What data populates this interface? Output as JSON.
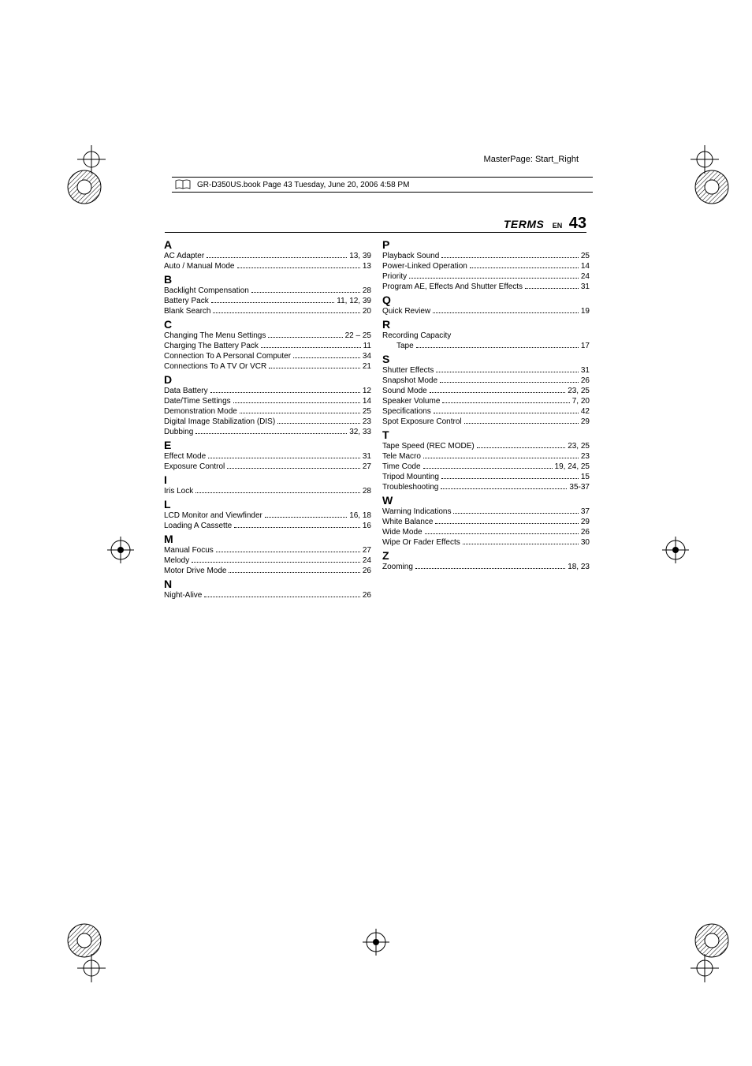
{
  "masterpage_label": "MasterPage: Start_Right",
  "bookbar_text": "GR-D350US.book  Page 43  Tuesday, June 20, 2006  4:58 PM",
  "header": {
    "title": "TERMS",
    "lang": "EN",
    "pageno": "43"
  },
  "colors": {
    "text": "#000000",
    "bg": "#ffffff"
  },
  "typography": {
    "body_pt": 10,
    "letter_pt": 14,
    "header_title_pt": 14,
    "pageno_pt": 20
  },
  "left_col": [
    {
      "letter": "A"
    },
    {
      "label": "AC Adapter",
      "pages": "13, 39"
    },
    {
      "label": "Auto / Manual Mode",
      "pages": "13"
    },
    {
      "letter": "B"
    },
    {
      "label": "Backlight Compensation",
      "pages": "28"
    },
    {
      "label": "Battery Pack",
      "pages": "11, 12, 39"
    },
    {
      "label": "Blank Search",
      "pages": "20"
    },
    {
      "letter": "C"
    },
    {
      "label": "Changing The Menu Settings",
      "pages": "22 – 25"
    },
    {
      "label": "Charging The Battery Pack",
      "pages": "11"
    },
    {
      "label": "Connection To A Personal Computer",
      "pages": "34"
    },
    {
      "label": "Connections To A TV Or VCR",
      "pages": "21"
    },
    {
      "letter": "D"
    },
    {
      "label": "Data Battery",
      "pages": "12"
    },
    {
      "label": "Date/Time Settings",
      "pages": "14"
    },
    {
      "label": "Demonstration Mode",
      "pages": "25"
    },
    {
      "label": "Digital Image Stabilization (DIS)",
      "pages": "23"
    },
    {
      "label": "Dubbing",
      "pages": "32, 33"
    },
    {
      "letter": "E"
    },
    {
      "label": "Effect Mode",
      "pages": "31"
    },
    {
      "label": "Exposure Control",
      "pages": "27"
    },
    {
      "letter": "I"
    },
    {
      "label": "Iris Lock",
      "pages": "28"
    },
    {
      "letter": "L"
    },
    {
      "label": "LCD Monitor and Viewfinder",
      "pages": "16, 18"
    },
    {
      "label": "Loading A Cassette",
      "pages": "16"
    },
    {
      "letter": "M"
    },
    {
      "label": "Manual Focus",
      "pages": "27"
    },
    {
      "label": "Melody",
      "pages": "24"
    },
    {
      "label": "Motor Drive Mode",
      "pages": "26"
    },
    {
      "letter": "N"
    },
    {
      "label": "Night-Alive",
      "pages": "26"
    }
  ],
  "right_col": [
    {
      "letter": "P"
    },
    {
      "label": "Playback Sound",
      "pages": "25"
    },
    {
      "label": "Power-Linked Operation",
      "pages": "14"
    },
    {
      "label": "Priority",
      "pages": "24"
    },
    {
      "label": "Program AE, Effects And Shutter Effects",
      "pages": "31"
    },
    {
      "letter": "Q"
    },
    {
      "label": "Quick Review",
      "pages": "19"
    },
    {
      "letter": "R"
    },
    {
      "heading": "Recording Capacity"
    },
    {
      "sub": true,
      "label": "Tape",
      "pages": "17"
    },
    {
      "letter": "S"
    },
    {
      "label": "Shutter Effects",
      "pages": "31"
    },
    {
      "label": "Snapshot Mode",
      "pages": "26"
    },
    {
      "label": "Sound Mode",
      "pages": "23, 25"
    },
    {
      "label": "Speaker Volume",
      "pages": "7, 20"
    },
    {
      "label": "Specifications",
      "pages": "42"
    },
    {
      "label": "Spot Exposure Control",
      "pages": "29"
    },
    {
      "letter": "T"
    },
    {
      "label": "Tape Speed (REC MODE)",
      "pages": "23, 25"
    },
    {
      "label": "Tele Macro",
      "pages": "23"
    },
    {
      "label": "Time Code",
      "pages": "19, 24, 25"
    },
    {
      "label": "Tripod Mounting",
      "pages": "15"
    },
    {
      "label": "Troubleshooting",
      "pages": "35-37"
    },
    {
      "letter": "W"
    },
    {
      "label": "Warning Indications",
      "pages": "37"
    },
    {
      "label": "White Balance",
      "pages": "29"
    },
    {
      "label": "Wide Mode",
      "pages": "26"
    },
    {
      "label": "Wipe Or Fader Effects",
      "pages": "30"
    },
    {
      "letter": "Z"
    },
    {
      "label": "Zooming",
      "pages": "18, 23"
    }
  ]
}
